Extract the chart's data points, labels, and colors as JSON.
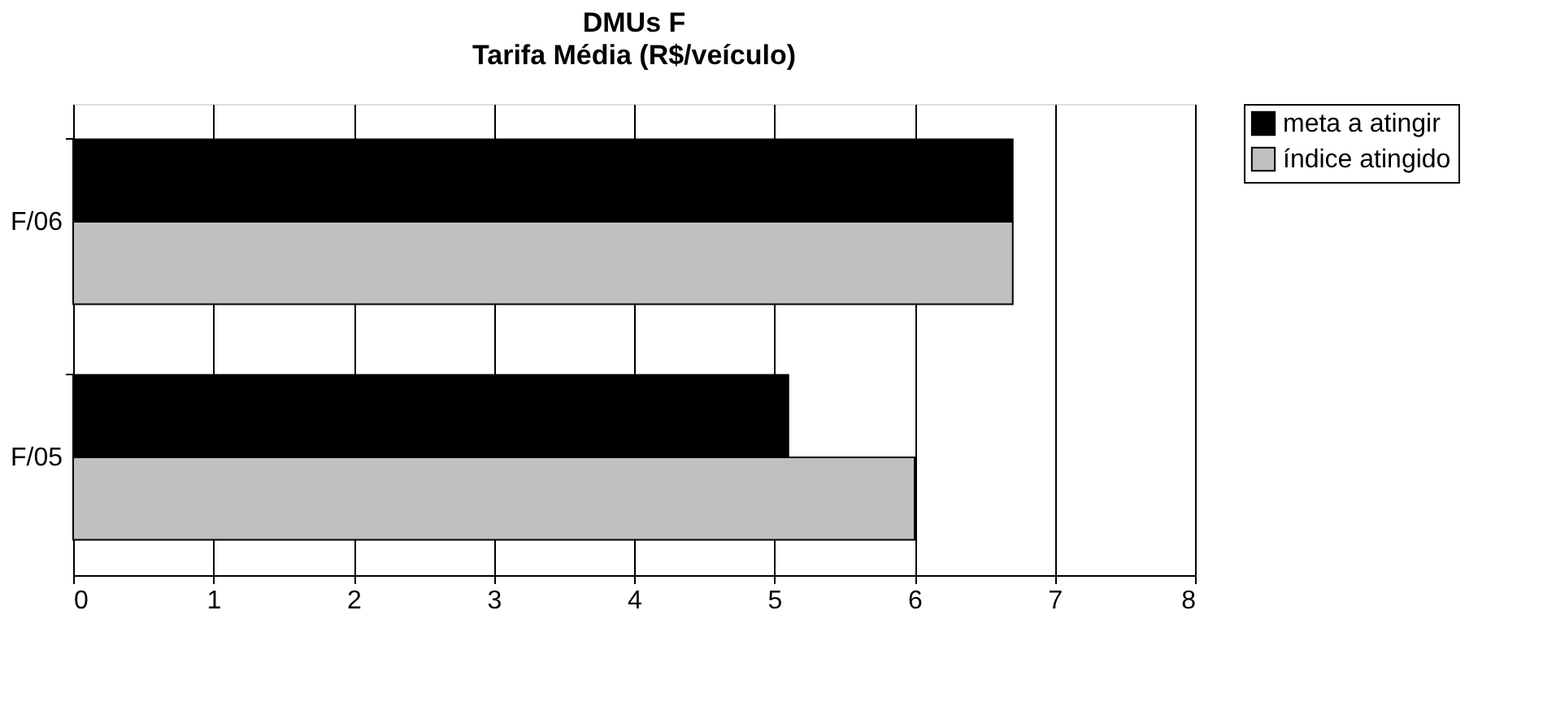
{
  "chart_data": {
    "type": "bar",
    "orientation": "horizontal",
    "title": "DMUs F",
    "subtitle": "Tarifa Média (R$/veículo)",
    "categories": [
      "F/06",
      "F/05"
    ],
    "series": [
      {
        "name": "meta a atingir",
        "color": "#000000",
        "values": [
          6.7,
          5.1
        ]
      },
      {
        "name": "índice atingido",
        "color": "#c0c0c0",
        "values": [
          6.7,
          6.0
        ]
      }
    ],
    "xlim": [
      0,
      8
    ],
    "xticks": [
      0,
      1,
      2,
      3,
      4,
      5,
      6,
      7,
      8
    ],
    "grid": "x",
    "legend": "top right"
  }
}
